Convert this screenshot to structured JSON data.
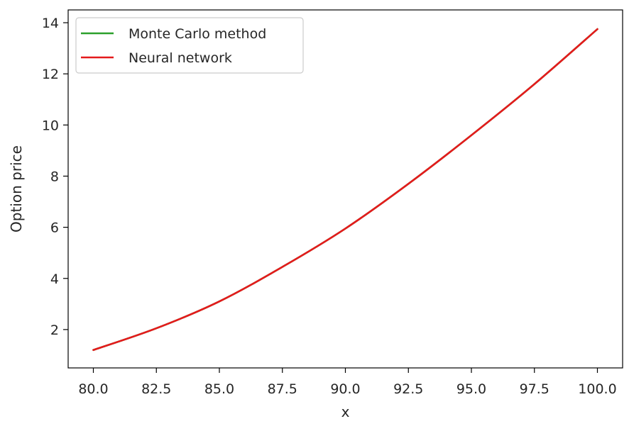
{
  "chart_data": {
    "type": "line",
    "title": "",
    "xlabel": "x",
    "ylabel": "Option price",
    "xlim": [
      79.0,
      101.0
    ],
    "ylim": [
      0.5,
      14.5
    ],
    "xticks": [
      80.0,
      82.5,
      85.0,
      87.5,
      90.0,
      92.5,
      95.0,
      97.5,
      100.0
    ],
    "xtick_labels": [
      "80.0",
      "82.5",
      "85.0",
      "87.5",
      "90.0",
      "92.5",
      "95.0",
      "97.5",
      "100.0"
    ],
    "yticks": [
      2,
      4,
      6,
      8,
      10,
      12,
      14
    ],
    "ytick_labels": [
      "2",
      "4",
      "6",
      "8",
      "10",
      "12",
      "14"
    ],
    "grid": false,
    "legend_position": "upper-left",
    "x": [
      80.0,
      82.5,
      85.0,
      87.5,
      90.0,
      92.5,
      95.0,
      97.5,
      100.0
    ],
    "series": [
      {
        "name": "Monte Carlo method",
        "color": "#2ca02c",
        "values": [
          1.2,
          2.05,
          3.1,
          4.45,
          5.95,
          7.7,
          9.6,
          11.6,
          13.75
        ]
      },
      {
        "name": "Neural network",
        "color": "#e41a1c",
        "values": [
          1.2,
          2.05,
          3.1,
          4.45,
          5.95,
          7.7,
          9.6,
          11.6,
          13.75
        ]
      }
    ]
  }
}
